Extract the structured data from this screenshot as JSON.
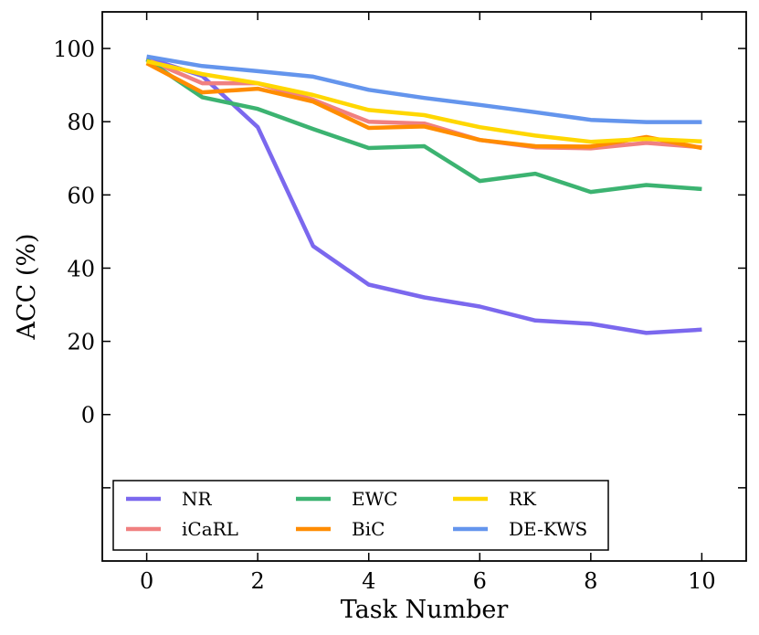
{
  "chart_data": {
    "type": "line",
    "title": "",
    "xlabel": "Task Number",
    "ylabel": "ACC (%)",
    "xlim": [
      -0.8,
      10.8
    ],
    "ylim": [
      -40,
      110
    ],
    "xticks": [
      0,
      2,
      4,
      6,
      8,
      10
    ],
    "yticks": [
      0,
      20,
      40,
      60,
      80,
      100
    ],
    "legend_position": "bottom-left",
    "x": [
      0,
      1,
      2,
      3,
      4,
      5,
      6,
      7,
      8,
      9,
      10
    ],
    "series": [
      {
        "name": "NR",
        "color": "#7b68ee",
        "values": [
          97.5,
          92.5,
          78.5,
          46,
          35.5,
          32,
          29.5,
          25.7,
          24.8,
          22.3,
          23.2
        ]
      },
      {
        "name": "iCaRL",
        "color": "#f08080",
        "values": [
          97,
          90.5,
          90.5,
          86,
          80,
          79.5,
          75,
          73,
          72.7,
          74.2,
          73
        ]
      },
      {
        "name": "EWC",
        "color": "#3cb371",
        "values": [
          97,
          86.7,
          83.5,
          78,
          72.8,
          73.3,
          63.8,
          65.8,
          60.8,
          62.7,
          61.6
        ]
      },
      {
        "name": "BiC",
        "color": "#ff8c00",
        "values": [
          96,
          88,
          89,
          85.5,
          78.3,
          78.7,
          75,
          73.3,
          73.2,
          75.8,
          72.8
        ]
      },
      {
        "name": "RK",
        "color": "#ffd700",
        "values": [
          96.5,
          93,
          90.5,
          87.3,
          83.2,
          81.8,
          78.5,
          76.2,
          74.5,
          75.3,
          74.6
        ]
      },
      {
        "name": "DE-KWS",
        "color": "#6495ed",
        "values": [
          97.8,
          95.2,
          93.8,
          92.3,
          88.7,
          86.5,
          84.6,
          82.6,
          80.5,
          79.9,
          79.9
        ]
      }
    ]
  }
}
